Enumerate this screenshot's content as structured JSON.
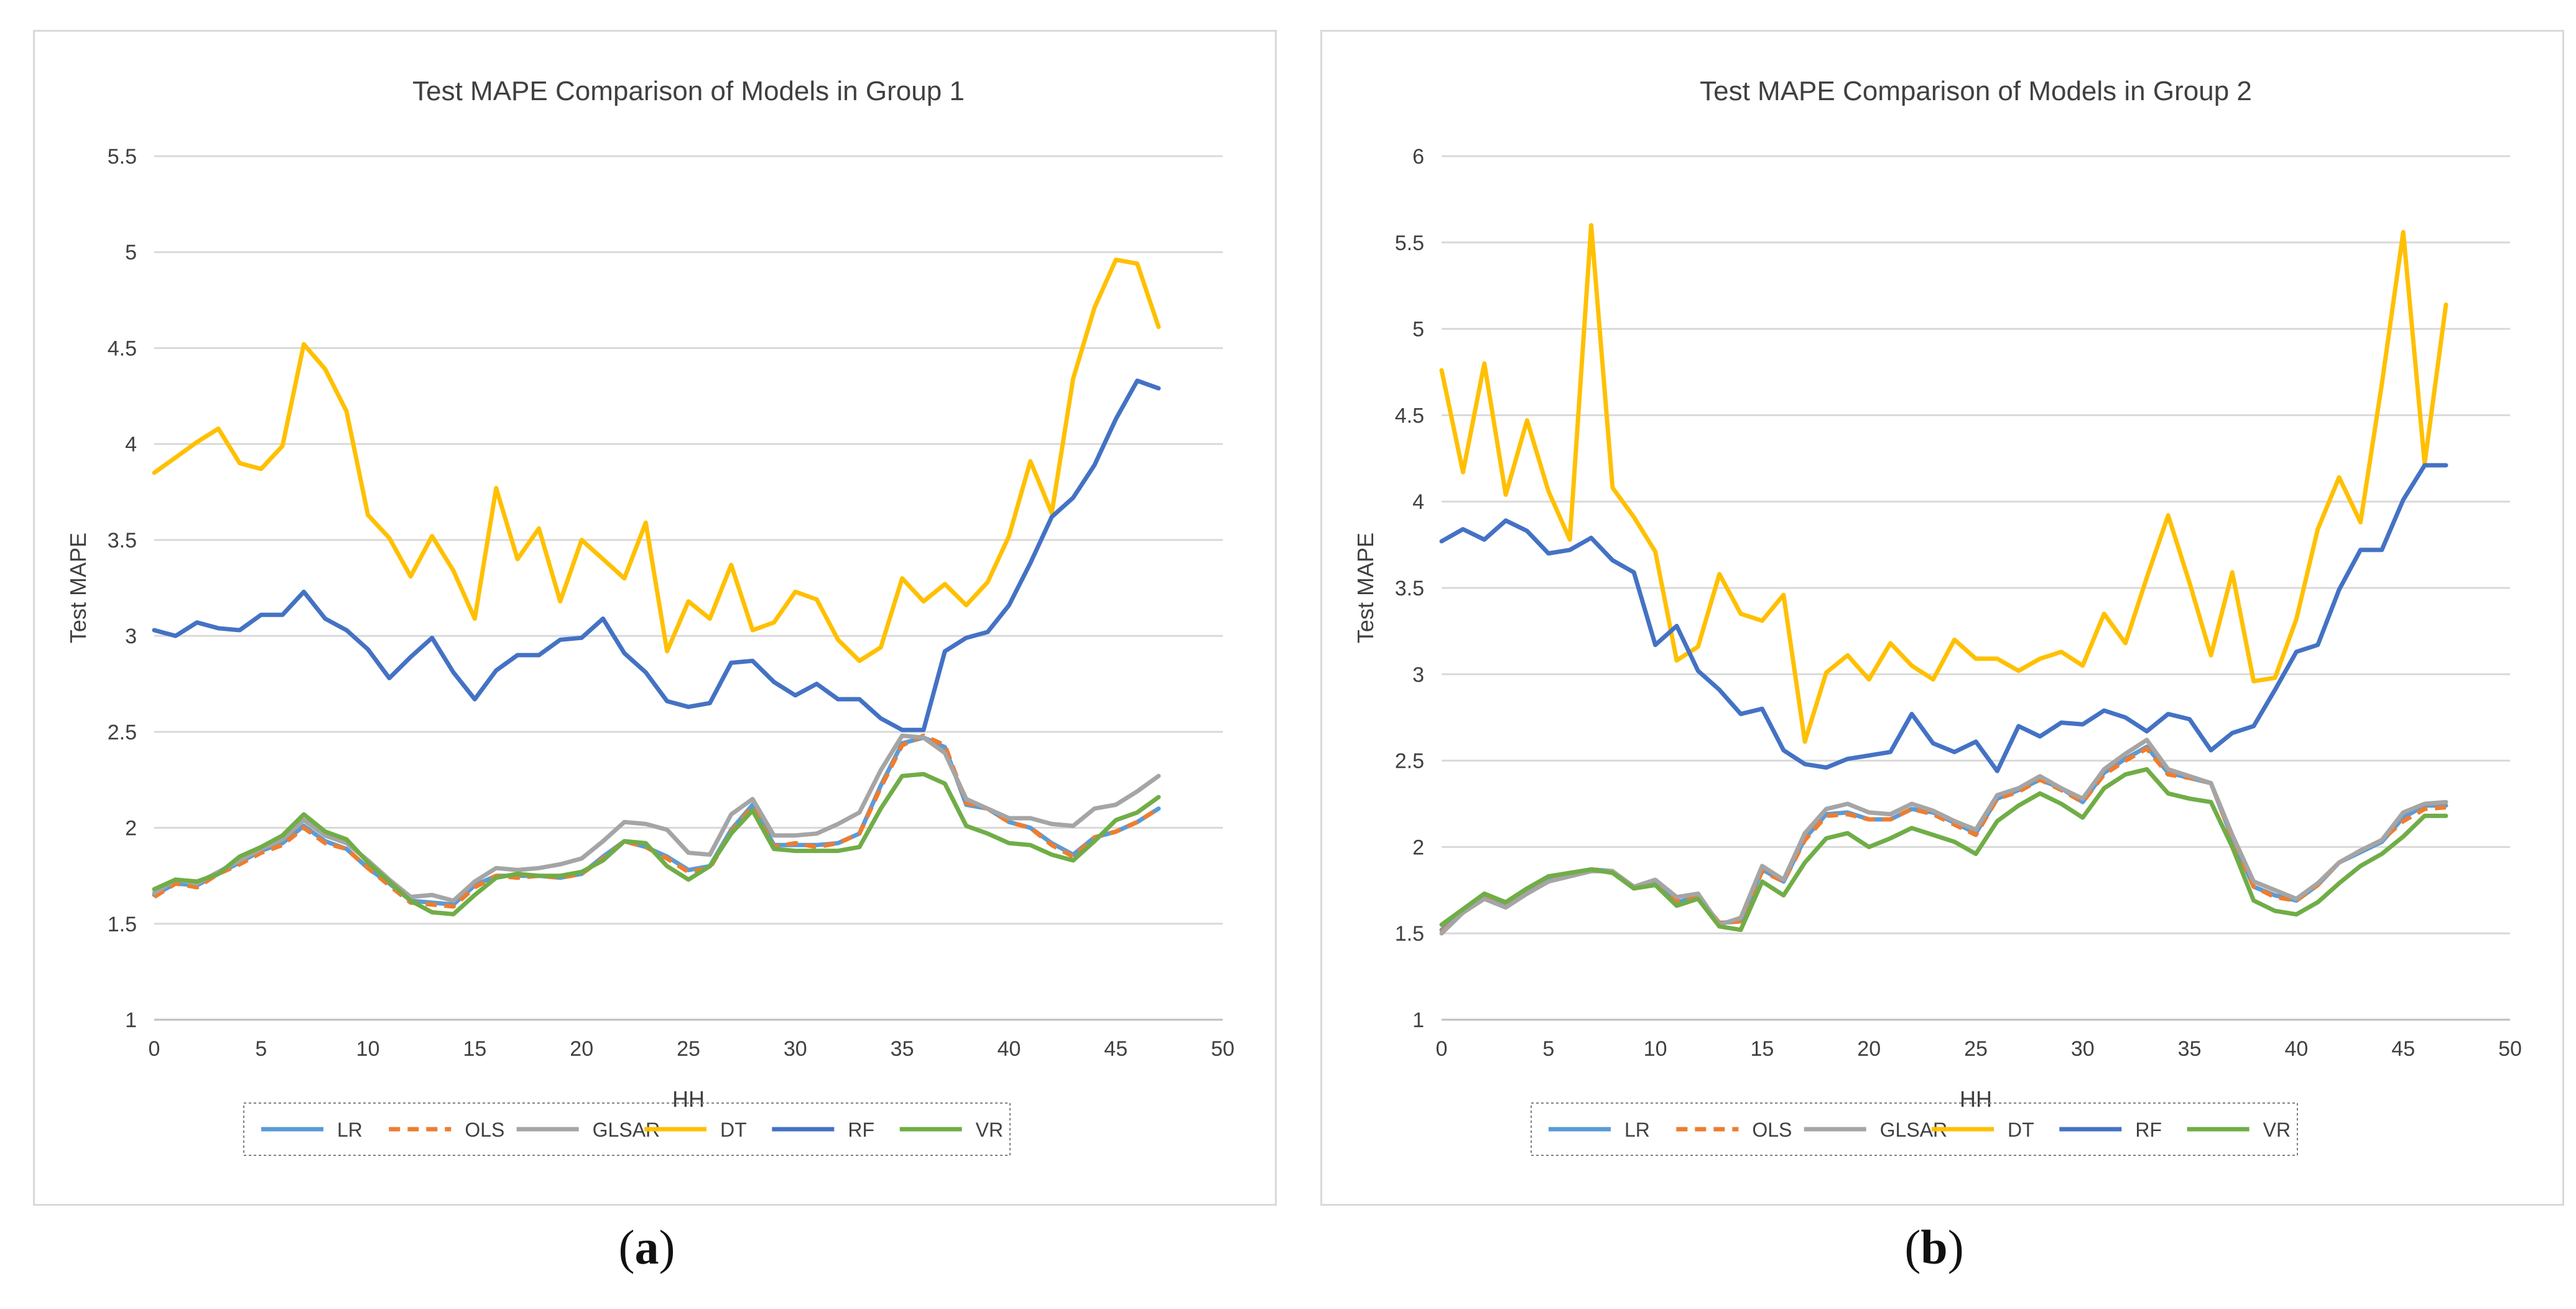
{
  "chart_data": [
    {
      "type": "line",
      "title": "Test MAPE Comparison of Models in Group 1",
      "xlabel": "HH",
      "ylabel": "Test MAPE",
      "xlim": [
        0,
        50
      ],
      "ylim": [
        1,
        5.5
      ],
      "xticks": [
        "0",
        "5",
        "10",
        "15",
        "20",
        "25",
        "30",
        "35",
        "40",
        "45",
        "50"
      ],
      "yticks": [
        "1",
        "1.5",
        "2",
        "2.5",
        "3",
        "3.5",
        "4",
        "4.5",
        "5",
        "5.5"
      ],
      "x": [
        0,
        1,
        2,
        3,
        4,
        5,
        6,
        7,
        8,
        9,
        10,
        11,
        12,
        13,
        14,
        15,
        16,
        17,
        18,
        19,
        20,
        21,
        22,
        23,
        24,
        25,
        26,
        27,
        28,
        29,
        30,
        31,
        32,
        33,
        34,
        35,
        36,
        37,
        38,
        39,
        40,
        41,
        42,
        43,
        44,
        45,
        46,
        47
      ],
      "legend_position": "bottom",
      "series": [
        {
          "name": "LR",
          "color": "#5B9BD5",
          "dash": false,
          "values": [
            1.65,
            1.71,
            1.7,
            1.76,
            1.82,
            1.88,
            1.92,
            2.01,
            1.93,
            1.89,
            1.79,
            1.71,
            1.62,
            1.61,
            1.6,
            1.7,
            1.75,
            1.75,
            1.75,
            1.74,
            1.76,
            1.85,
            1.93,
            1.9,
            1.85,
            1.78,
            1.8,
            1.99,
            2.12,
            1.91,
            1.91,
            1.91,
            1.92,
            1.97,
            2.22,
            2.44,
            2.47,
            2.42,
            2.12,
            2.1,
            2.03,
            2.0,
            1.92,
            1.86,
            1.95,
            1.98,
            2.03,
            2.1
          ]
        },
        {
          "name": "OLS",
          "color": "#ED7D31",
          "dash": true,
          "values": [
            1.64,
            1.71,
            1.69,
            1.76,
            1.81,
            1.87,
            1.91,
            2.0,
            1.92,
            1.89,
            1.79,
            1.7,
            1.61,
            1.6,
            1.59,
            1.69,
            1.75,
            1.74,
            1.75,
            1.74,
            1.76,
            1.84,
            1.93,
            1.9,
            1.84,
            1.77,
            1.79,
            1.98,
            2.11,
            1.9,
            1.92,
            1.9,
            1.92,
            1.97,
            2.21,
            2.43,
            2.48,
            2.43,
            2.13,
            2.1,
            2.03,
            2.0,
            1.91,
            1.85,
            1.95,
            1.98,
            2.03,
            2.1
          ]
        },
        {
          "name": "GLSAR",
          "color": "#A5A5A5",
          "dash": false,
          "values": [
            1.66,
            1.73,
            1.71,
            1.77,
            1.83,
            1.89,
            1.94,
            2.04,
            1.96,
            1.92,
            1.83,
            1.73,
            1.64,
            1.65,
            1.62,
            1.72,
            1.79,
            1.78,
            1.79,
            1.81,
            1.84,
            1.93,
            2.03,
            2.02,
            1.99,
            1.87,
            1.86,
            2.07,
            2.15,
            1.96,
            1.96,
            1.97,
            2.02,
            2.08,
            2.3,
            2.48,
            2.47,
            2.39,
            2.15,
            2.1,
            2.05,
            2.05,
            2.02,
            2.01,
            2.1,
            2.12,
            2.19,
            2.27
          ]
        },
        {
          "name": "DT",
          "color": "#FFC000",
          "dash": false,
          "values": [
            3.85,
            3.93,
            4.01,
            4.08,
            3.9,
            3.87,
            3.99,
            4.52,
            4.39,
            4.17,
            3.63,
            3.51,
            3.31,
            3.52,
            3.34,
            3.09,
            3.77,
            3.4,
            3.56,
            3.18,
            3.5,
            3.4,
            3.3,
            3.59,
            2.92,
            3.18,
            3.09,
            3.37,
            3.03,
            3.07,
            3.23,
            3.19,
            2.98,
            2.87,
            2.94,
            3.3,
            3.18,
            3.27,
            3.16,
            3.28,
            3.52,
            3.91,
            3.64,
            4.34,
            4.71,
            4.96,
            4.94,
            4.61
          ]
        },
        {
          "name": "RF",
          "color": "#4472C4",
          "dash": false,
          "values": [
            3.03,
            3.0,
            3.07,
            3.04,
            3.03,
            3.11,
            3.11,
            3.23,
            3.09,
            3.03,
            2.93,
            2.78,
            2.89,
            2.99,
            2.81,
            2.67,
            2.82,
            2.9,
            2.9,
            2.98,
            2.99,
            3.09,
            2.91,
            2.81,
            2.66,
            2.63,
            2.65,
            2.86,
            2.87,
            2.76,
            2.69,
            2.75,
            2.67,
            2.67,
            2.57,
            2.51,
            2.51,
            2.92,
            2.99,
            3.02,
            3.16,
            3.38,
            3.62,
            3.72,
            3.89,
            4.13,
            4.33,
            4.29
          ]
        },
        {
          "name": "VR",
          "color": "#70AD47",
          "dash": false,
          "values": [
            1.68,
            1.73,
            1.72,
            1.76,
            1.85,
            1.9,
            1.96,
            2.07,
            1.98,
            1.94,
            1.82,
            1.72,
            1.62,
            1.56,
            1.55,
            1.65,
            1.74,
            1.76,
            1.75,
            1.75,
            1.77,
            1.83,
            1.93,
            1.92,
            1.8,
            1.73,
            1.8,
            1.97,
            2.09,
            1.89,
            1.88,
            1.88,
            1.88,
            1.9,
            2.1,
            2.27,
            2.28,
            2.23,
            2.01,
            1.97,
            1.92,
            1.91,
            1.86,
            1.83,
            1.93,
            2.04,
            2.08,
            2.16
          ]
        }
      ]
    },
    {
      "type": "line",
      "title": "Test MAPE Comparison of Models in Group 2",
      "xlabel": "HH",
      "ylabel": "Test MAPE",
      "xlim": [
        0,
        50
      ],
      "ylim": [
        1,
        6
      ],
      "xticks": [
        "0",
        "5",
        "10",
        "15",
        "20",
        "25",
        "30",
        "35",
        "40",
        "45",
        "50"
      ],
      "yticks": [
        "1",
        "1.5",
        "2",
        "2.5",
        "3",
        "3.5",
        "4",
        "4.5",
        "5",
        "5.5",
        "6"
      ],
      "x": [
        0,
        1,
        2,
        3,
        4,
        5,
        6,
        7,
        8,
        9,
        10,
        11,
        12,
        13,
        14,
        15,
        16,
        17,
        18,
        19,
        20,
        21,
        22,
        23,
        24,
        25,
        26,
        27,
        28,
        29,
        30,
        31,
        32,
        33,
        34,
        35,
        36,
        37,
        38,
        39,
        40,
        41,
        42,
        43,
        44,
        45,
        46,
        47
      ],
      "legend_position": "bottom",
      "series": [
        {
          "name": "LR",
          "color": "#5B9BD5",
          "dash": false,
          "values": [
            1.52,
            1.62,
            1.72,
            1.67,
            1.74,
            1.81,
            1.84,
            1.87,
            1.86,
            1.76,
            1.79,
            1.68,
            1.71,
            1.56,
            1.57,
            1.87,
            1.8,
            2.05,
            2.19,
            2.2,
            2.16,
            2.16,
            2.22,
            2.2,
            2.14,
            2.08,
            2.28,
            2.33,
            2.39,
            2.34,
            2.26,
            2.43,
            2.51,
            2.58,
            2.43,
            2.4,
            2.37,
            2.05,
            1.77,
            1.72,
            1.69,
            1.78,
            1.91,
            1.97,
            2.03,
            2.17,
            2.24,
            2.24
          ]
        },
        {
          "name": "OLS",
          "color": "#ED7D31",
          "dash": true,
          "values": [
            1.51,
            1.62,
            1.71,
            1.67,
            1.75,
            1.82,
            1.84,
            1.87,
            1.86,
            1.76,
            1.79,
            1.69,
            1.71,
            1.56,
            1.57,
            1.86,
            1.8,
            2.04,
            2.18,
            2.19,
            2.16,
            2.16,
            2.22,
            2.19,
            2.13,
            2.07,
            2.28,
            2.32,
            2.39,
            2.33,
            2.26,
            2.42,
            2.5,
            2.57,
            2.42,
            2.4,
            2.37,
            2.05,
            1.77,
            1.71,
            1.69,
            1.78,
            1.91,
            1.98,
            2.04,
            2.15,
            2.22,
            2.23
          ]
        },
        {
          "name": "GLSAR",
          "color": "#A5A5A5",
          "dash": false,
          "values": [
            1.5,
            1.62,
            1.7,
            1.65,
            1.73,
            1.8,
            1.83,
            1.86,
            1.86,
            1.77,
            1.81,
            1.71,
            1.73,
            1.55,
            1.59,
            1.89,
            1.81,
            2.08,
            2.22,
            2.25,
            2.2,
            2.19,
            2.25,
            2.21,
            2.15,
            2.1,
            2.3,
            2.34,
            2.41,
            2.34,
            2.28,
            2.45,
            2.54,
            2.62,
            2.45,
            2.41,
            2.37,
            2.07,
            1.8,
            1.75,
            1.7,
            1.79,
            1.91,
            1.98,
            2.04,
            2.2,
            2.25,
            2.26
          ]
        },
        {
          "name": "DT",
          "color": "#FFC000",
          "dash": false,
          "values": [
            4.76,
            4.17,
            4.8,
            4.04,
            4.47,
            4.06,
            3.78,
            5.6,
            4.08,
            3.91,
            3.71,
            3.08,
            3.16,
            3.58,
            3.35,
            3.31,
            3.46,
            2.61,
            3.01,
            3.11,
            2.97,
            3.18,
            3.05,
            2.97,
            3.2,
            3.09,
            3.09,
            3.02,
            3.09,
            3.13,
            3.05,
            3.35,
            3.18,
            3.56,
            3.92,
            3.53,
            3.11,
            3.59,
            2.96,
            2.98,
            3.32,
            3.84,
            4.14,
            3.88,
            4.68,
            5.56,
            4.22,
            5.14
          ]
        },
        {
          "name": "RF",
          "color": "#4472C4",
          "dash": false,
          "values": [
            3.77,
            3.84,
            3.78,
            3.89,
            3.83,
            3.7,
            3.72,
            3.79,
            3.66,
            3.59,
            3.17,
            3.28,
            3.02,
            2.91,
            2.77,
            2.8,
            2.56,
            2.48,
            2.46,
            2.51,
            2.53,
            2.55,
            2.77,
            2.6,
            2.55,
            2.61,
            2.44,
            2.7,
            2.64,
            2.72,
            2.71,
            2.79,
            2.75,
            2.67,
            2.77,
            2.74,
            2.56,
            2.66,
            2.7,
            2.91,
            3.13,
            3.17,
            3.49,
            3.72,
            3.72,
            4.01,
            4.21,
            4.21
          ]
        },
        {
          "name": "VR",
          "color": "#70AD47",
          "dash": false,
          "values": [
            1.55,
            1.64,
            1.73,
            1.68,
            1.76,
            1.83,
            1.85,
            1.87,
            1.85,
            1.76,
            1.78,
            1.66,
            1.7,
            1.54,
            1.52,
            1.8,
            1.72,
            1.91,
            2.05,
            2.08,
            2.0,
            2.05,
            2.11,
            2.07,
            2.03,
            1.96,
            2.15,
            2.24,
            2.31,
            2.25,
            2.17,
            2.34,
            2.42,
            2.45,
            2.31,
            2.28,
            2.26,
            2.0,
            1.69,
            1.63,
            1.61,
            1.68,
            1.79,
            1.89,
            1.96,
            2.06,
            2.18,
            2.18
          ]
        }
      ]
    }
  ],
  "sublabels": [
    "a",
    "b"
  ]
}
